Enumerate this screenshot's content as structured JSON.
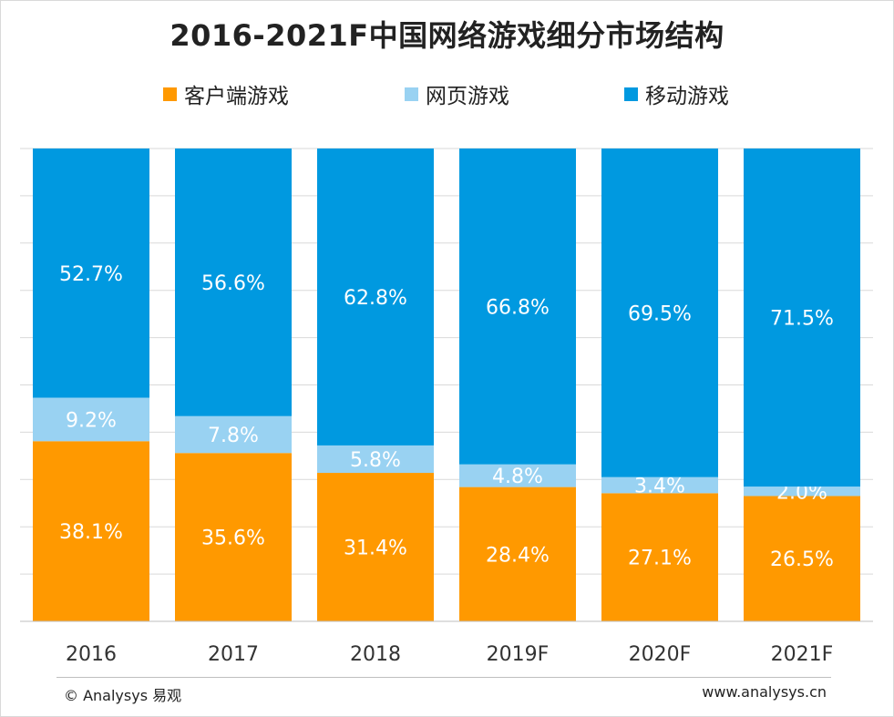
{
  "chart_data": {
    "type": "bar",
    "stacked": true,
    "normalized": true,
    "title": "2016-2021F中国网络游戏细分市场结构",
    "categories": [
      "2016",
      "2017",
      "2018",
      "2019F",
      "2020F",
      "2021F"
    ],
    "series": [
      {
        "name": "客户端游戏",
        "color": "#FF9900",
        "values": [
          38.1,
          35.6,
          31.4,
          28.4,
          27.1,
          26.5
        ],
        "labels": [
          "38.1%",
          "35.6%",
          "31.4%",
          "28.4%",
          "27.1%",
          "26.5%"
        ]
      },
      {
        "name": "网页游戏",
        "color": "#99D2F2",
        "values": [
          9.2,
          7.8,
          5.8,
          4.8,
          3.4,
          2.0
        ],
        "labels": [
          "9.2%",
          "7.8%",
          "5.8%",
          "4.8%",
          "3.4%",
          "2.0%"
        ]
      },
      {
        "name": "移动游戏",
        "color": "#0099E0",
        "values": [
          52.7,
          56.6,
          62.8,
          66.8,
          69.5,
          71.5
        ],
        "labels": [
          "52.7%",
          "56.6%",
          "62.8%",
          "66.8%",
          "69.5%",
          "71.5%"
        ]
      }
    ],
    "ylim": [
      0,
      100
    ],
    "grid": true,
    "legend_position": "top"
  },
  "footer": {
    "copyright": "© Analysys 易观",
    "website": "www.analysys.cn"
  }
}
